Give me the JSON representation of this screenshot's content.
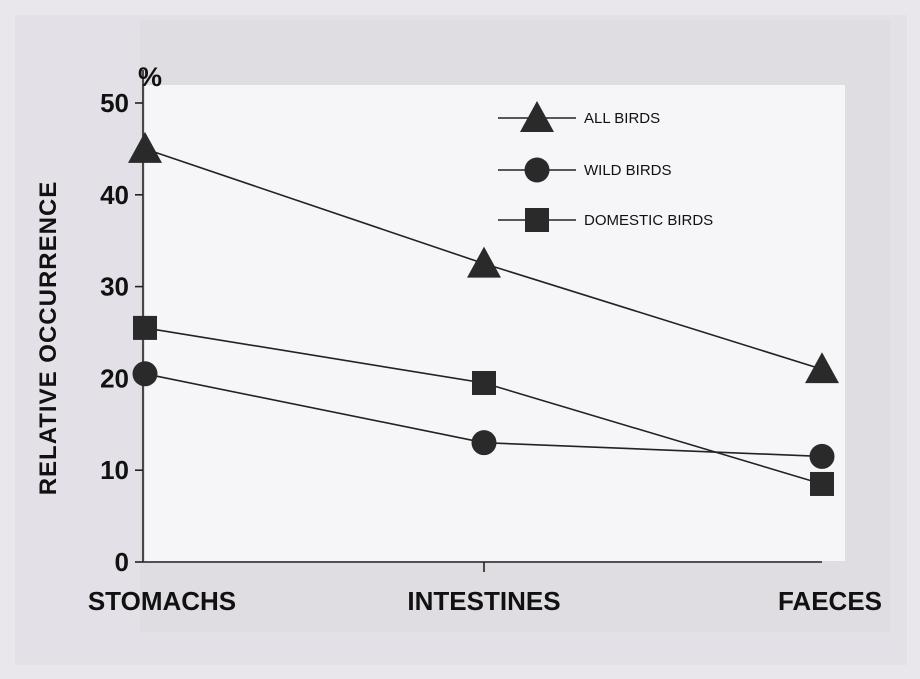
{
  "chart_data": {
    "type": "line",
    "title": "",
    "ylabel": "RELATIVE OCCURRENCE",
    "yunit": "%",
    "xlabel": "",
    "categories": [
      "STOMACHS",
      "INTESTINES",
      "FAECES"
    ],
    "ylim": [
      0,
      50
    ],
    "yticks": [
      0,
      10,
      20,
      30,
      40,
      50
    ],
    "grid": false,
    "legend_position": "top-right",
    "series": [
      {
        "name": "ALL BIRDS",
        "marker": "triangle",
        "values": [
          45,
          32.5,
          21
        ]
      },
      {
        "name": "WILD BIRDS",
        "marker": "circle",
        "values": [
          20.5,
          13,
          11.5
        ]
      },
      {
        "name": "DOMESTIC BIRDS",
        "marker": "square",
        "values": [
          25.5,
          19.5,
          8.5
        ]
      }
    ],
    "colors": {
      "line": "#222222",
      "marker": "#2a2a2a",
      "plot_area": "#f6f5f8",
      "background": "#e3e1e7"
    }
  }
}
